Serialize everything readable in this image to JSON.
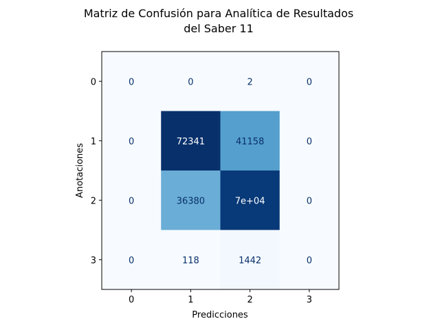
{
  "chart_data": {
    "type": "heatmap",
    "title_lines": [
      "Matriz de Confusión para Analítica de Resultados",
      "del Saber 11"
    ],
    "xlabel": "Predicciones",
    "ylabel": "Anotaciones",
    "x_categories": [
      "0",
      "1",
      "2",
      "3"
    ],
    "y_categories": [
      "0",
      "1",
      "2",
      "3"
    ],
    "matrix": [
      [
        0,
        0,
        2,
        0
      ],
      [
        0,
        72341,
        41158,
        0
      ],
      [
        0,
        36380,
        70000,
        0
      ],
      [
        0,
        118,
        1442,
        0
      ]
    ],
    "cell_labels": [
      [
        "0",
        "0",
        "2",
        "0"
      ],
      [
        "0",
        "72341",
        "41158",
        "0"
      ],
      [
        "0",
        "36380",
        "7e+04",
        "0"
      ],
      [
        "0",
        "118",
        "1442",
        "0"
      ]
    ],
    "colormap": "Blues",
    "color_min": "#f7fbff",
    "color_max": "#08306b",
    "colorbar": false,
    "grid": false
  }
}
